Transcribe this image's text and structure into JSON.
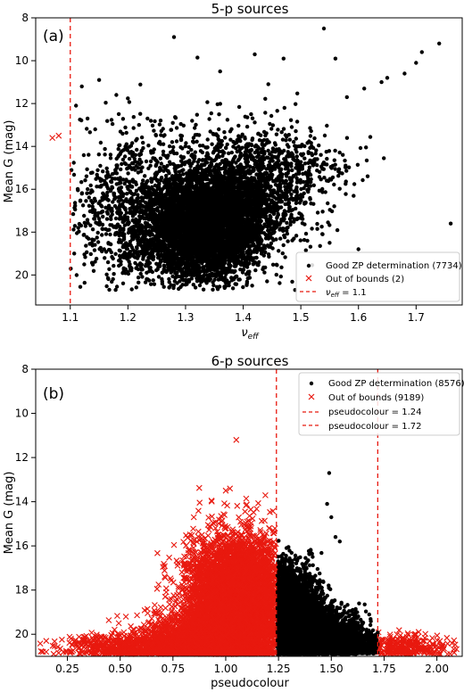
{
  "chart_data": [
    {
      "type": "scatter",
      "panel_label": "(a)",
      "title": "5-p sources",
      "xlabel": "ν",
      "xlabel_sub": "eff",
      "ylabel": "Mean G (mag)",
      "xlim": [
        1.04,
        1.78
      ],
      "ylim": [
        21.4,
        8.0
      ],
      "y_inverted": true,
      "xticks": [
        "1.1",
        "1.2",
        "1.3",
        "1.4",
        "1.5",
        "1.6",
        "1.7"
      ],
      "xtick_values": [
        1.1,
        1.2,
        1.3,
        1.4,
        1.5,
        1.6,
        1.7
      ],
      "yticks": [
        "8",
        "10",
        "12",
        "14",
        "16",
        "18",
        "20"
      ],
      "ytick_values": [
        8,
        10,
        12,
        14,
        16,
        18,
        20
      ],
      "legend_position": "bottom-right",
      "colors": {
        "good": "#000000",
        "out": "#e8190f",
        "line": "#e8190f"
      },
      "series": [
        {
          "name": "Good ZP determination (7734)",
          "marker": "dot",
          "count": 7734,
          "clusters": [
            {
              "cx": 1.33,
              "cy": 17.9,
              "sx": 0.05,
              "sy": 1.2,
              "n": 4200
            },
            {
              "cx": 1.38,
              "cy": 16.6,
              "sx": 0.06,
              "sy": 1.1,
              "n": 1700
            },
            {
              "cx": 1.22,
              "cy": 17.6,
              "sx": 0.06,
              "sy": 1.6,
              "n": 900
            },
            {
              "cx": 1.46,
              "cy": 15.0,
              "sx": 0.06,
              "sy": 1.0,
              "n": 500
            },
            {
              "cx": 1.27,
              "cy": 14.5,
              "sx": 0.09,
              "sy": 1.3,
              "n": 300
            }
          ],
          "points": [
            [
              1.28,
              8.9
            ],
            [
              1.54,
              8.5
            ],
            [
              1.36,
              10.5
            ],
            [
              1.42,
              9.7
            ],
            [
              1.47,
              9.9
            ],
            [
              1.56,
              9.9
            ],
            [
              1.64,
              11.0
            ],
            [
              1.7,
              10.1
            ],
            [
              1.74,
              9.2
            ],
            [
              1.71,
              9.6
            ],
            [
              1.68,
              10.6
            ],
            [
              1.65,
              10.8
            ],
            [
              1.61,
              11.3
            ],
            [
              1.58,
              11.7
            ],
            [
              1.76,
              17.6
            ],
            [
              1.6,
              18.8
            ],
            [
              1.49,
              20.7
            ],
            [
              1.55,
              18.5
            ],
            [
              1.15,
              10.9
            ],
            [
              1.12,
              11.2
            ],
            [
              1.11,
              12.1
            ],
            [
              1.13,
              12.7
            ],
            [
              1.18,
              11.6
            ]
          ]
        },
        {
          "name": "Out of bounds (2)",
          "marker": "x",
          "count": 2,
          "points": [
            [
              1.069,
              13.6
            ],
            [
              1.08,
              13.5
            ]
          ]
        },
        {
          "name": "ν",
          "name_sub": "eff",
          "name_suffix": " = 1.1",
          "type": "vline",
          "x": 1.1
        }
      ]
    },
    {
      "type": "scatter",
      "panel_label": "(b)",
      "title": "6-p sources",
      "xlabel": "pseudocolour",
      "ylabel": "Mean G (mag)",
      "xlim": [
        0.1,
        2.12
      ],
      "ylim": [
        21.0,
        8.0
      ],
      "y_inverted": true,
      "xticks": [
        "0.25",
        "0.50",
        "0.75",
        "1.00",
        "1.25",
        "1.50",
        "1.75",
        "2.00"
      ],
      "xtick_values": [
        0.25,
        0.5,
        0.75,
        1.0,
        1.25,
        1.5,
        1.75,
        2.0
      ],
      "yticks": [
        "8",
        "10",
        "12",
        "14",
        "16",
        "18",
        "20"
      ],
      "ytick_values": [
        8,
        10,
        12,
        14,
        16,
        18,
        20
      ],
      "legend_position": "top-right",
      "colors": {
        "good": "#000000",
        "out": "#e8190f",
        "line": "#e8190f"
      },
      "series": [
        {
          "name": "Good ZP determination (8576)",
          "marker": "dot",
          "count": 8576,
          "clusters": [
            {
              "cx": 1.3,
              "cy": 19.3,
              "sx": 0.07,
              "sy": 1.1,
              "n": 5000
            },
            {
              "cx": 1.42,
              "cy": 20.0,
              "sx": 0.11,
              "sy": 0.6,
              "n": 2600
            },
            {
              "cx": 1.6,
              "cy": 20.5,
              "sx": 0.09,
              "sy": 0.3,
              "n": 900
            }
          ],
          "points": [
            [
              1.49,
              12.7
            ],
            [
              1.48,
              14.1
            ],
            [
              1.54,
              15.8
            ],
            [
              1.52,
              15.6
            ],
            [
              1.5,
              14.7
            ]
          ]
        },
        {
          "name": "Out of bounds (9189)",
          "marker": "x",
          "count": 9189,
          "clusters": [
            {
              "cx": 1.06,
              "cy": 18.4,
              "sx": 0.12,
              "sy": 1.4,
              "n": 5600
            },
            {
              "cx": 0.93,
              "cy": 20.1,
              "sx": 0.15,
              "sy": 0.6,
              "n": 2200
            },
            {
              "cx": 0.6,
              "cy": 20.6,
              "sx": 0.18,
              "sy": 0.3,
              "n": 800
            },
            {
              "cx": 1.85,
              "cy": 20.6,
              "sx": 0.1,
              "sy": 0.3,
              "n": 300
            }
          ],
          "points": [
            [
              1.05,
              11.2
            ],
            [
              0.15,
              20.3
            ],
            [
              0.15,
              20.8
            ],
            [
              2.05,
              20.9
            ],
            [
              1.0,
              13.5
            ],
            [
              1.02,
              13.4
            ]
          ]
        },
        {
          "name": "pseudocolour = 1.24",
          "type": "vline",
          "x": 1.24
        },
        {
          "name": "pseudocolour = 1.72",
          "type": "vline",
          "x": 1.72
        }
      ]
    }
  ]
}
